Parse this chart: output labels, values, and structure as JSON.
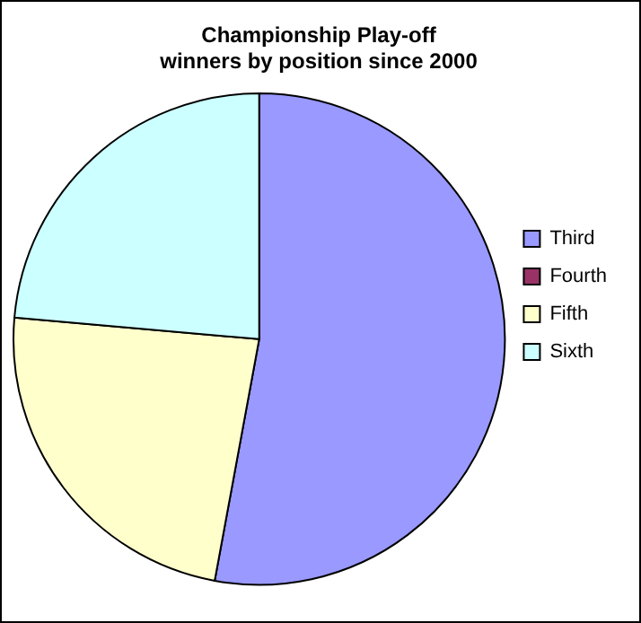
{
  "chart_data": {
    "type": "pie",
    "title": [
      "Championship Play-off",
      "winners by position since 2000"
    ],
    "categories": [
      "Third",
      "Fourth",
      "Fifth",
      "Sixth"
    ],
    "values": [
      52.9,
      0,
      23.5,
      23.6
    ],
    "colors": [
      "#9999ff",
      "#993366",
      "#ffffcc",
      "#ccffff"
    ],
    "legend": "right"
  }
}
